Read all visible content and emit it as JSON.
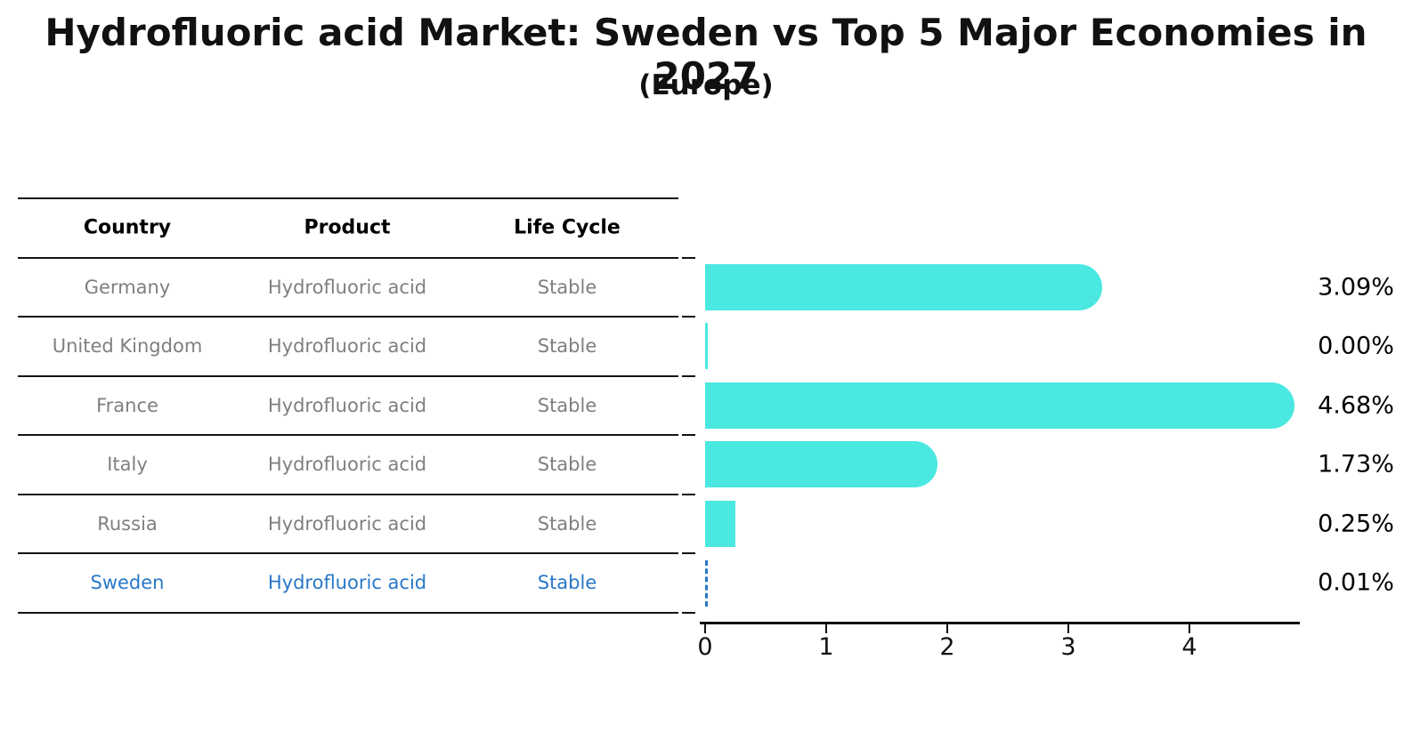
{
  "chart": {
    "title": "Hydrofluoric acid Market: Sweden vs Top 5 Major Economies in 2027",
    "subtitle": "(Europe)"
  },
  "table": {
    "columns": [
      "Country",
      "Product",
      "Life Cycle"
    ],
    "rows": [
      {
        "country": "Germany",
        "product": "Hydrofluoric acid",
        "life_cycle": "Stable",
        "highlight": false
      },
      {
        "country": "United Kingdom",
        "product": "Hydrofluoric acid",
        "life_cycle": "Stable",
        "highlight": false
      },
      {
        "country": "France",
        "product": "Hydrofluoric acid",
        "life_cycle": "Stable",
        "highlight": false
      },
      {
        "country": "Italy",
        "product": "Hydrofluoric acid",
        "life_cycle": "Stable",
        "highlight": false
      },
      {
        "country": "Russia",
        "product": "Hydrofluoric acid",
        "life_cycle": "Stable",
        "highlight": false
      },
      {
        "country": "Sweden",
        "product": "Hydrofluoric acid",
        "life_cycle": "Stable",
        "highlight": true
      }
    ]
  },
  "chart_data": {
    "type": "bar",
    "orientation": "horizontal",
    "title": "Hydrofluoric acid Market: Sweden vs Top 5 Major Economies in 2027",
    "subtitle": "(Europe)",
    "categories": [
      "Germany",
      "United Kingdom",
      "France",
      "Italy",
      "Russia",
      "Sweden"
    ],
    "values": [
      3.09,
      0.0,
      4.68,
      1.73,
      0.25,
      0.01
    ],
    "value_labels": [
      "3.09%",
      "0.00%",
      "4.68%",
      "1.73%",
      "0.25%",
      "0.01%"
    ],
    "xlabel": "",
    "ylabel": "",
    "xticks": [
      "0",
      "1",
      "2",
      "3",
      "4"
    ],
    "xlim": [
      0,
      4.91
    ],
    "grid": false,
    "legend": false,
    "bar_color": "#4AE8E0",
    "highlight_color": "#2878C8",
    "highlight_category": "Sweden",
    "text_color": "#7f7f7f",
    "header_color": "#000000"
  }
}
